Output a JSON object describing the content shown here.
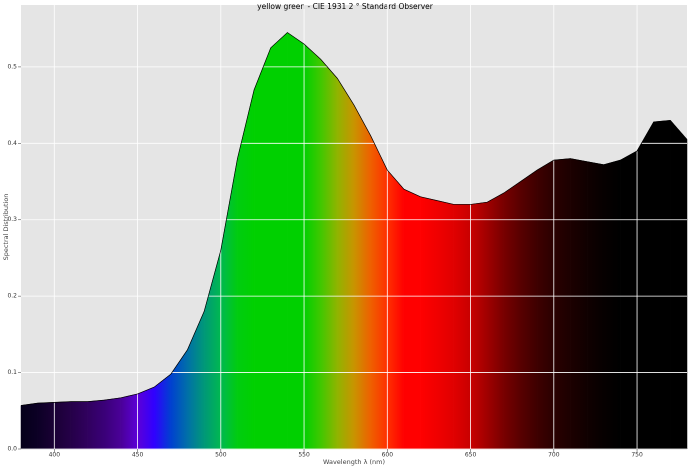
{
  "chart_data": {
    "type": "spectrum-area",
    "title": "yellow green - CIE 1931 2 °  Standard Observer",
    "xlabel": "Wavelength λ (nm)",
    "ylabel": "Spectral Distribution",
    "x": [
      380,
      390,
      400,
      410,
      420,
      430,
      440,
      450,
      460,
      470,
      480,
      490,
      500,
      510,
      520,
      530,
      540,
      550,
      560,
      570,
      580,
      590,
      600,
      610,
      620,
      630,
      640,
      650,
      660,
      670,
      680,
      690,
      700,
      710,
      720,
      730,
      740,
      750,
      760,
      770,
      780
    ],
    "values": [
      0.057,
      0.06,
      0.061,
      0.062,
      0.062,
      0.064,
      0.067,
      0.072,
      0.081,
      0.098,
      0.13,
      0.18,
      0.26,
      0.38,
      0.47,
      0.525,
      0.545,
      0.53,
      0.51,
      0.485,
      0.45,
      0.41,
      0.365,
      0.34,
      0.33,
      0.325,
      0.32,
      0.32,
      0.323,
      0.335,
      0.35,
      0.365,
      0.378,
      0.38,
      0.376,
      0.372,
      0.378,
      0.39,
      0.428,
      0.43,
      0.405
    ],
    "colors": [
      "#05001a",
      "#0c0025",
      "#1a0035",
      "#250048",
      "#30005e",
      "#3a0078",
      "#4a0098",
      "#5c00d8",
      "#3000ff",
      "#0040d0",
      "#0070a8",
      "#009878",
      "#00b850",
      "#00cc10",
      "#00d000",
      "#00d000",
      "#00d000",
      "#00d000",
      "#40c800",
      "#90b400",
      "#c89400",
      "#ee6000",
      "#ff3000",
      "#ff0000",
      "#ff0000",
      "#f00000",
      "#e00000",
      "#c80000",
      "#a00000",
      "#780000",
      "#580000",
      "#3e0000",
      "#2a0000",
      "#1c0000",
      "#100000",
      "#060000",
      "#000000",
      "#000000",
      "#000000",
      "#000000",
      "#000000"
    ],
    "line_color": "#000000",
    "background": "#e5e5e5",
    "grid": true,
    "xlim": [
      380,
      780
    ],
    "ylim": [
      0,
      0.581
    ],
    "xticks": [
      400,
      450,
      500,
      550,
      600,
      650,
      700,
      750
    ],
    "yticks": [
      {
        "value": 0,
        "label": "0.0"
      },
      0.1,
      0.2,
      0.3,
      0.4,
      0.5
    ]
  }
}
